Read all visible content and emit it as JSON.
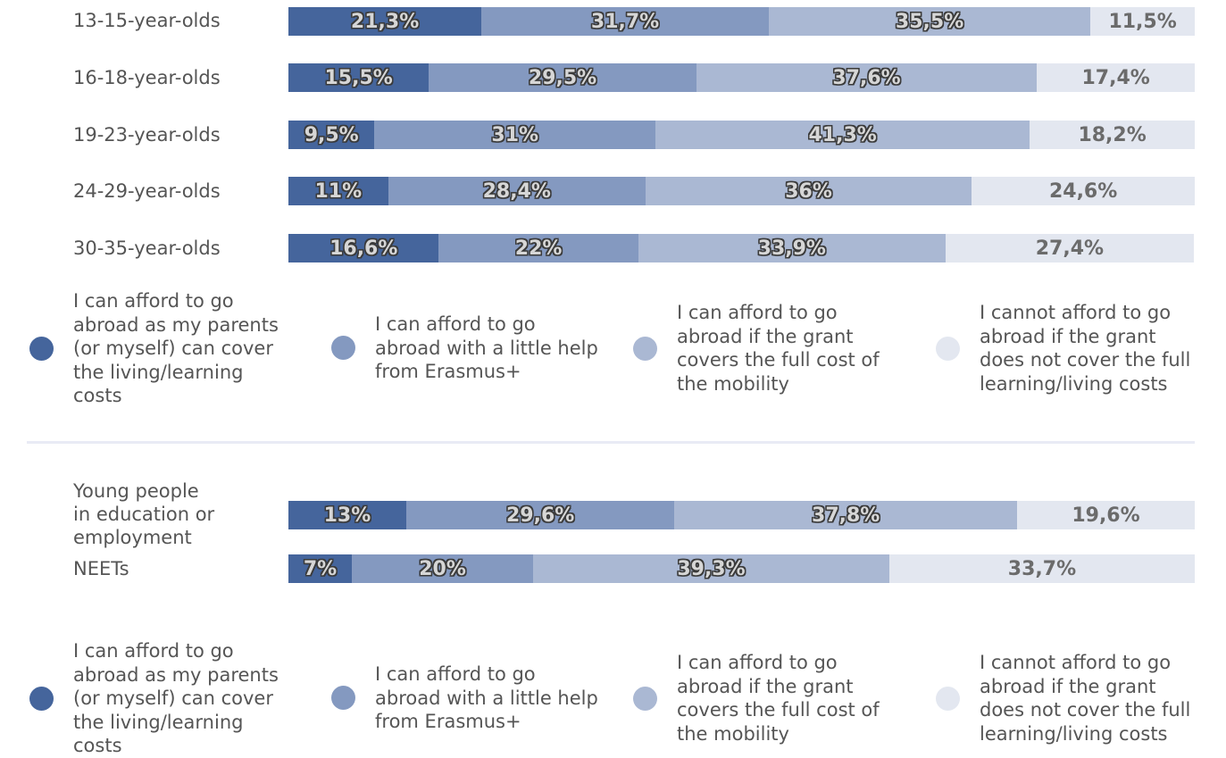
{
  "colors": [
    "#45659c",
    "#8499c0",
    "#aab8d3",
    "#e3e7f0"
  ],
  "chart_data": [
    {
      "type": "bar",
      "orientation": "horizontal",
      "stacked": true,
      "normalized_percent": true,
      "categories": [
        "13-15-year-olds",
        "16-18-year-olds",
        "19-23-year-olds",
        "24-29-year-olds",
        "30-35-year-olds"
      ],
      "series": [
        {
          "name": "I can afford to go abroad as my parents (or myself) can cover the living/learning costs",
          "values": [
            21.3,
            15.5,
            9.5,
            11,
            16.6
          ],
          "labels": [
            "21,3%",
            "15,5%",
            "9,5%",
            "11%",
            "16,6%"
          ]
        },
        {
          "name": "I can afford to go abroad with a little help from Erasmus+",
          "values": [
            31.7,
            29.5,
            31,
            28.4,
            22
          ],
          "labels": [
            "31,7%",
            "29,5%",
            "31%",
            "28,4%",
            "22%"
          ]
        },
        {
          "name": "I can afford to go abroad if the grant covers the full cost of the mobility",
          "values": [
            35.5,
            37.6,
            41.3,
            36,
            33.9
          ],
          "labels": [
            "35,5%",
            "37,6%",
            "41,3%",
            "36%",
            "33,9%"
          ]
        },
        {
          "name": "I cannot afford to go abroad if the grant does not cover the full learning/living costs",
          "values": [
            11.5,
            17.4,
            18.2,
            24.6,
            27.4
          ],
          "labels": [
            "11,5%",
            "17,4%",
            "18,2%",
            "24,6%",
            "27,4%"
          ]
        }
      ],
      "legend": {
        "position": "bottom",
        "items": [
          "I can afford to go\nabroad as my parents\n(or myself) can cover\nthe living/learning\ncosts",
          "I can afford to go\nabroad with a little help\nfrom Erasmus+",
          "I can afford to go\nabroad if the grant\ncovers the full cost of\nthe mobility",
          "I cannot afford to go\nabroad if the grant\ndoes not cover the full\nlearning/living costs"
        ]
      }
    },
    {
      "type": "bar",
      "orientation": "horizontal",
      "stacked": true,
      "normalized_percent": true,
      "categories": [
        "Young people\nin education or\nemployment",
        "NEETs"
      ],
      "series": [
        {
          "name": "I can afford to go abroad as my parents (or myself) can cover the living/learning costs",
          "values": [
            13,
            7
          ],
          "labels": [
            "13%",
            "7%"
          ]
        },
        {
          "name": "I can afford to go abroad with a little help from Erasmus+",
          "values": [
            29.6,
            20
          ],
          "labels": [
            "29,6%",
            "20%"
          ]
        },
        {
          "name": "I can afford to go abroad if the grant covers the full cost of the mobility",
          "values": [
            37.8,
            39.3
          ],
          "labels": [
            "37,8%",
            "39,3%"
          ]
        },
        {
          "name": "I cannot afford to go abroad if the grant does not cover the full learning/living costs",
          "values": [
            19.6,
            33.7
          ],
          "labels": [
            "19,6%",
            "33,7%"
          ]
        }
      ],
      "legend": {
        "position": "bottom",
        "items": [
          "I can afford to go\nabroad as my parents\n(or myself) can cover\nthe living/learning\ncosts",
          "I can afford to go\nabroad with a little help\nfrom Erasmus+",
          "I can afford to go\nabroad if the grant\ncovers the full cost of\nthe mobility",
          "I cannot afford to go\nabroad if the grant\ndoes not cover the full\nlearning/living costs"
        ]
      }
    }
  ]
}
